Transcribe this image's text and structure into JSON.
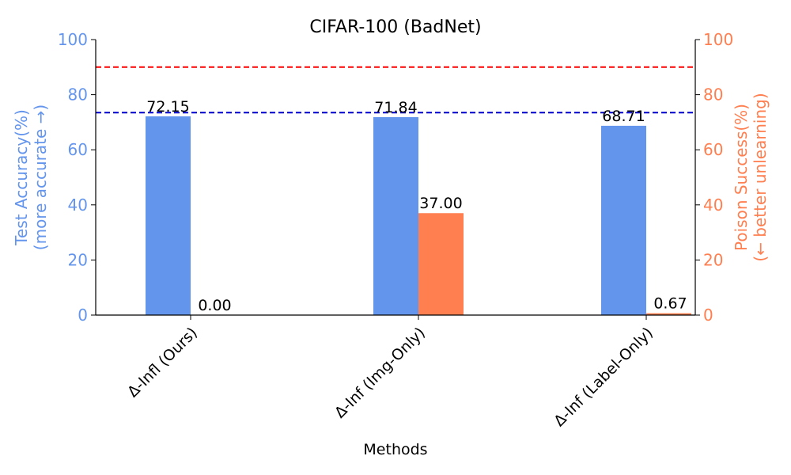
{
  "chart_data": {
    "type": "bar",
    "title": "CIFAR-100 (BadNet)",
    "xlabel": "Methods",
    "ylabel_left": [
      "Test Accuracy(%)",
      "(more accurate →)"
    ],
    "ylabel_right": [
      "Poison Success(%)",
      "(← better unlearning)"
    ],
    "categories": [
      "Δ-Infl (Ours)",
      "Δ-Inf (Img-Only)",
      "Δ-Inf (Label-Only)"
    ],
    "series": [
      {
        "values": [
          72.15,
          71.84,
          68.71
        ],
        "axis": "left",
        "color": "#6495ED"
      },
      {
        "values": [
          0.0,
          37.0,
          0.67
        ],
        "axis": "right",
        "color": "#FF7F50"
      }
    ],
    "value_labels": [
      [
        "72.15",
        "71.84",
        "68.71"
      ],
      [
        "0.00",
        "37.00",
        "0.67"
      ]
    ],
    "ylim_left": [
      0,
      100
    ],
    "ylim_right": [
      0,
      100
    ],
    "yticks_left": [
      "0",
      "20",
      "40",
      "60",
      "80",
      "100"
    ],
    "yticks_right": [
      "0",
      "20",
      "40",
      "60",
      "80",
      "100"
    ],
    "reference_lines": [
      {
        "value": 73.5,
        "axis": "left",
        "color": "#0000CD",
        "style": "dashed"
      },
      {
        "value": 90,
        "axis": "right",
        "color": "#FF0000",
        "style": "dashed"
      }
    ],
    "grid": false,
    "colors": {
      "left_axis": "#6495ED",
      "right_axis": "#FF7F50"
    }
  }
}
